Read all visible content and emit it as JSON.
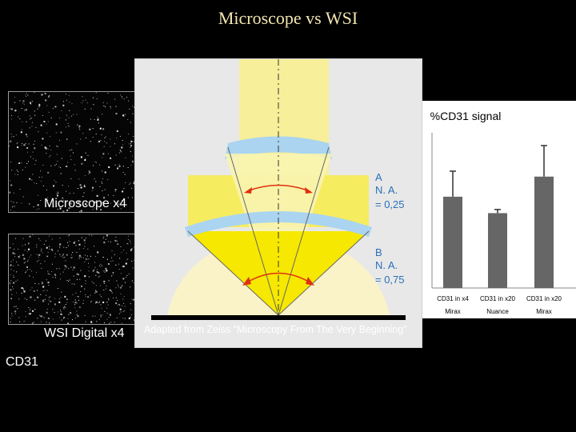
{
  "title": "Microscope vs WSI",
  "labels": {
    "microscope": "Microscope x4",
    "wsi": "WSI  Digital x4",
    "stain": "CD31"
  },
  "diagram": {
    "label_a": "A",
    "na_a_label": "N. A.",
    "na_a_value": "= 0,25",
    "label_b": "B",
    "na_b_label": "N. A.",
    "na_b_value": "= 0,75",
    "caption": "Adapted from Zeiss “Microscopy From The Very Beginning”"
  },
  "chart_data": {
    "type": "bar",
    "title": "%CD31 signal",
    "categories": [
      "CD31 in x4 Mirax",
      "CD31 in x20 Nuance",
      "CD31 in x20 Mirax"
    ],
    "tick_line1": [
      "CD31 in x4",
      "CD31 in x20",
      "CD31 in x20"
    ],
    "tick_line2": [
      "Mirax",
      "Nuance",
      "Mirax"
    ],
    "values": [
      5.0,
      4.1,
      6.1
    ],
    "errors": [
      1.4,
      0.2,
      1.7
    ],
    "ylim": [
      0,
      8.5
    ],
    "bar_color": "#666666",
    "grid": false
  },
  "colors": {
    "title": "#f2e6b0",
    "yellow_beam": "#f7ef9a",
    "yellow_cone": "#f6e800",
    "lens": "#aad4f0",
    "arrow": "#e03010",
    "na_text": "#2a6fb8"
  }
}
